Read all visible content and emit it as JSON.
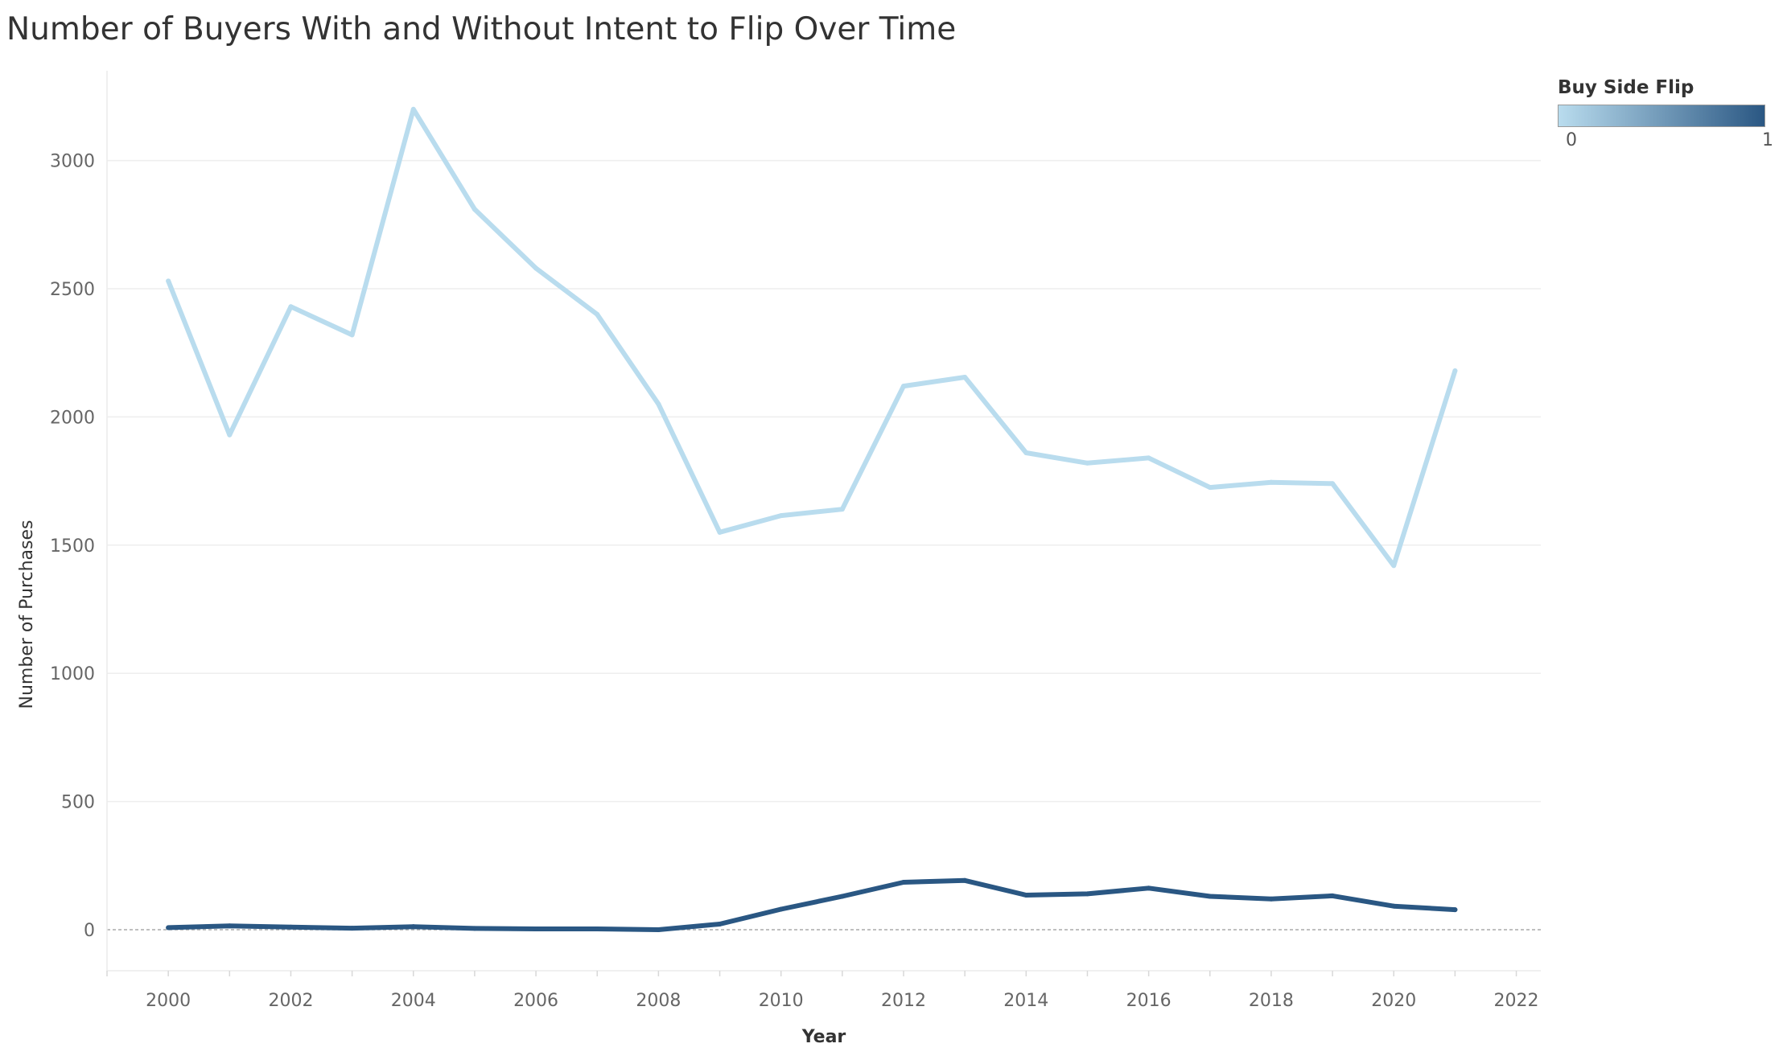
{
  "title": "Number of Buyers With and Without Intent to Flip Over Time",
  "legend": {
    "title": "Buy Side Flip",
    "min_label": "0",
    "max_label": "1",
    "color_low": "#b9dcee",
    "color_high": "#2a5783"
  },
  "chart_data": {
    "type": "line",
    "title": "Number of Buyers With and Without Intent to Flip Over Time",
    "xlabel": "Year",
    "ylabel": "Number of Purchases",
    "xlim": [
      1999,
      2022.4
    ],
    "ylim": [
      -160,
      3350
    ],
    "x_ticks": [
      2000,
      2002,
      2004,
      2006,
      2008,
      2010,
      2012,
      2014,
      2016,
      2018,
      2020,
      2022
    ],
    "y_ticks": [
      0,
      500,
      1000,
      1500,
      2000,
      2500,
      3000
    ],
    "grid": true,
    "legend_position": "top-right",
    "x": [
      2000,
      2001,
      2002,
      2003,
      2004,
      2005,
      2006,
      2007,
      2008,
      2009,
      2010,
      2011,
      2012,
      2013,
      2014,
      2015,
      2016,
      2017,
      2018,
      2019,
      2020,
      2021
    ],
    "series": [
      {
        "name": "0",
        "color": "#b9dcee",
        "values": [
          2530,
          1930,
          2430,
          2320,
          3200,
          2810,
          2580,
          2400,
          2050,
          1550,
          1615,
          1640,
          2120,
          2155,
          1860,
          1820,
          1840,
          1725,
          1745,
          1740,
          1420,
          2180
        ]
      },
      {
        "name": "1",
        "color": "#2a5783",
        "values": [
          8,
          15,
          10,
          6,
          12,
          5,
          3,
          3,
          0,
          22,
          80,
          130,
          185,
          192,
          135,
          140,
          162,
          130,
          120,
          132,
          92,
          78
        ]
      }
    ]
  }
}
